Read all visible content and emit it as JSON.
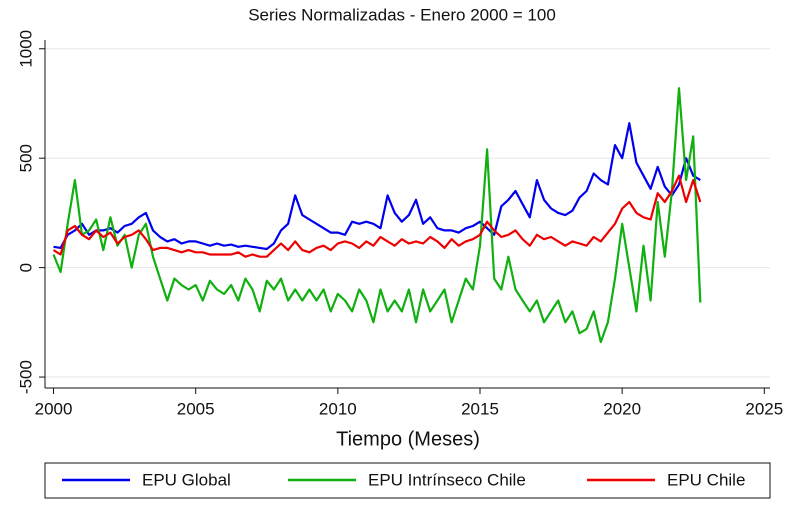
{
  "chart_data": {
    "type": "line",
    "title": "Series Normalizadas - Enero 2000 = 100",
    "x_label": "Tiempo (Meses)",
    "x": [
      2000,
      2000.25,
      2000.5,
      2000.75,
      2001,
      2001.25,
      2001.5,
      2001.75,
      2002,
      2002.25,
      2002.5,
      2002.75,
      2003,
      2003.25,
      2003.5,
      2003.75,
      2004,
      2004.25,
      2004.5,
      2004.75,
      2005,
      2005.25,
      2005.5,
      2005.75,
      2006,
      2006.25,
      2006.5,
      2006.75,
      2007,
      2007.25,
      2007.5,
      2007.75,
      2008,
      2008.25,
      2008.5,
      2008.75,
      2009,
      2009.25,
      2009.5,
      2009.75,
      2010,
      2010.25,
      2010.5,
      2010.75,
      2011,
      2011.25,
      2011.5,
      2011.75,
      2012,
      2012.25,
      2012.5,
      2012.75,
      2013,
      2013.25,
      2013.5,
      2013.75,
      2014,
      2014.25,
      2014.5,
      2014.75,
      2015,
      2015.25,
      2015.5,
      2015.75,
      2016,
      2016.25,
      2016.5,
      2016.75,
      2017,
      2017.25,
      2017.5,
      2017.75,
      2018,
      2018.25,
      2018.5,
      2018.75,
      2019,
      2019.25,
      2019.5,
      2019.75,
      2020,
      2020.25,
      2020.5,
      2020.75,
      2021,
      2021.25,
      2021.5,
      2021.75,
      2022,
      2022.25,
      2022.5,
      2022.75
    ],
    "series": [
      {
        "name": "EPU Global",
        "color": "#0000ee",
        "values": [
          95,
          90,
          150,
          170,
          200,
          150,
          170,
          170,
          180,
          160,
          190,
          200,
          230,
          250,
          170,
          140,
          120,
          130,
          110,
          120,
          120,
          110,
          100,
          110,
          100,
          105,
          95,
          100,
          95,
          90,
          85,
          110,
          170,
          200,
          330,
          240,
          220,
          200,
          180,
          160,
          160,
          150,
          210,
          200,
          210,
          200,
          180,
          330,
          250,
          210,
          240,
          310,
          200,
          230,
          180,
          170,
          170,
          160,
          180,
          190,
          210,
          180,
          150,
          280,
          310,
          350,
          290,
          230,
          400,
          310,
          270,
          250,
          240,
          260,
          320,
          350,
          430,
          400,
          380,
          560,
          500,
          660,
          480,
          420,
          360,
          460,
          370,
          330,
          380,
          500,
          420,
          400
        ]
      },
      {
        "name": "EPU Intrínseco Chile",
        "color": "#10b010",
        "values": [
          60,
          -20,
          200,
          400,
          150,
          170,
          220,
          80,
          230,
          100,
          150,
          0,
          150,
          200,
          50,
          -50,
          -150,
          -50,
          -80,
          -100,
          -80,
          -150,
          -60,
          -100,
          -120,
          -80,
          -150,
          -50,
          -100,
          -200,
          -60,
          -100,
          -50,
          -150,
          -100,
          -150,
          -100,
          -150,
          -100,
          -200,
          -120,
          -150,
          -200,
          -100,
          -150,
          -250,
          -100,
          -200,
          -150,
          -200,
          -100,
          -250,
          -100,
          -200,
          -150,
          -100,
          -250,
          -150,
          -50,
          -100,
          100,
          540,
          -50,
          -100,
          50,
          -100,
          -150,
          -200,
          -150,
          -250,
          -200,
          -150,
          -250,
          -200,
          -300,
          -280,
          -200,
          -340,
          -250,
          -50,
          200,
          0,
          -200,
          100,
          -150,
          300,
          50,
          350,
          820,
          400,
          600,
          -160
        ]
      },
      {
        "name": "EPU Chile",
        "color": "#ee0000",
        "values": [
          80,
          60,
          170,
          190,
          150,
          130,
          170,
          140,
          160,
          110,
          140,
          150,
          170,
          130,
          80,
          90,
          90,
          80,
          70,
          80,
          70,
          70,
          60,
          60,
          60,
          60,
          70,
          50,
          60,
          50,
          50,
          80,
          110,
          80,
          120,
          80,
          70,
          90,
          100,
          80,
          110,
          120,
          110,
          90,
          120,
          100,
          140,
          120,
          100,
          130,
          110,
          120,
          110,
          140,
          120,
          90,
          130,
          100,
          120,
          130,
          150,
          210,
          170,
          140,
          150,
          170,
          130,
          100,
          150,
          130,
          140,
          120,
          100,
          120,
          110,
          100,
          140,
          120,
          160,
          200,
          270,
          300,
          250,
          230,
          220,
          340,
          300,
          350,
          420,
          300,
          400,
          300
        ]
      }
    ],
    "xlim": [
      1999.7,
      2025.2
    ],
    "ylim": [
      -550,
      1040
    ],
    "xticks": [
      2000,
      2005,
      2010,
      2015,
      2020,
      2025
    ],
    "yticks": [
      -500,
      0,
      500,
      1000
    ],
    "grid": true,
    "legend": "bottom"
  }
}
